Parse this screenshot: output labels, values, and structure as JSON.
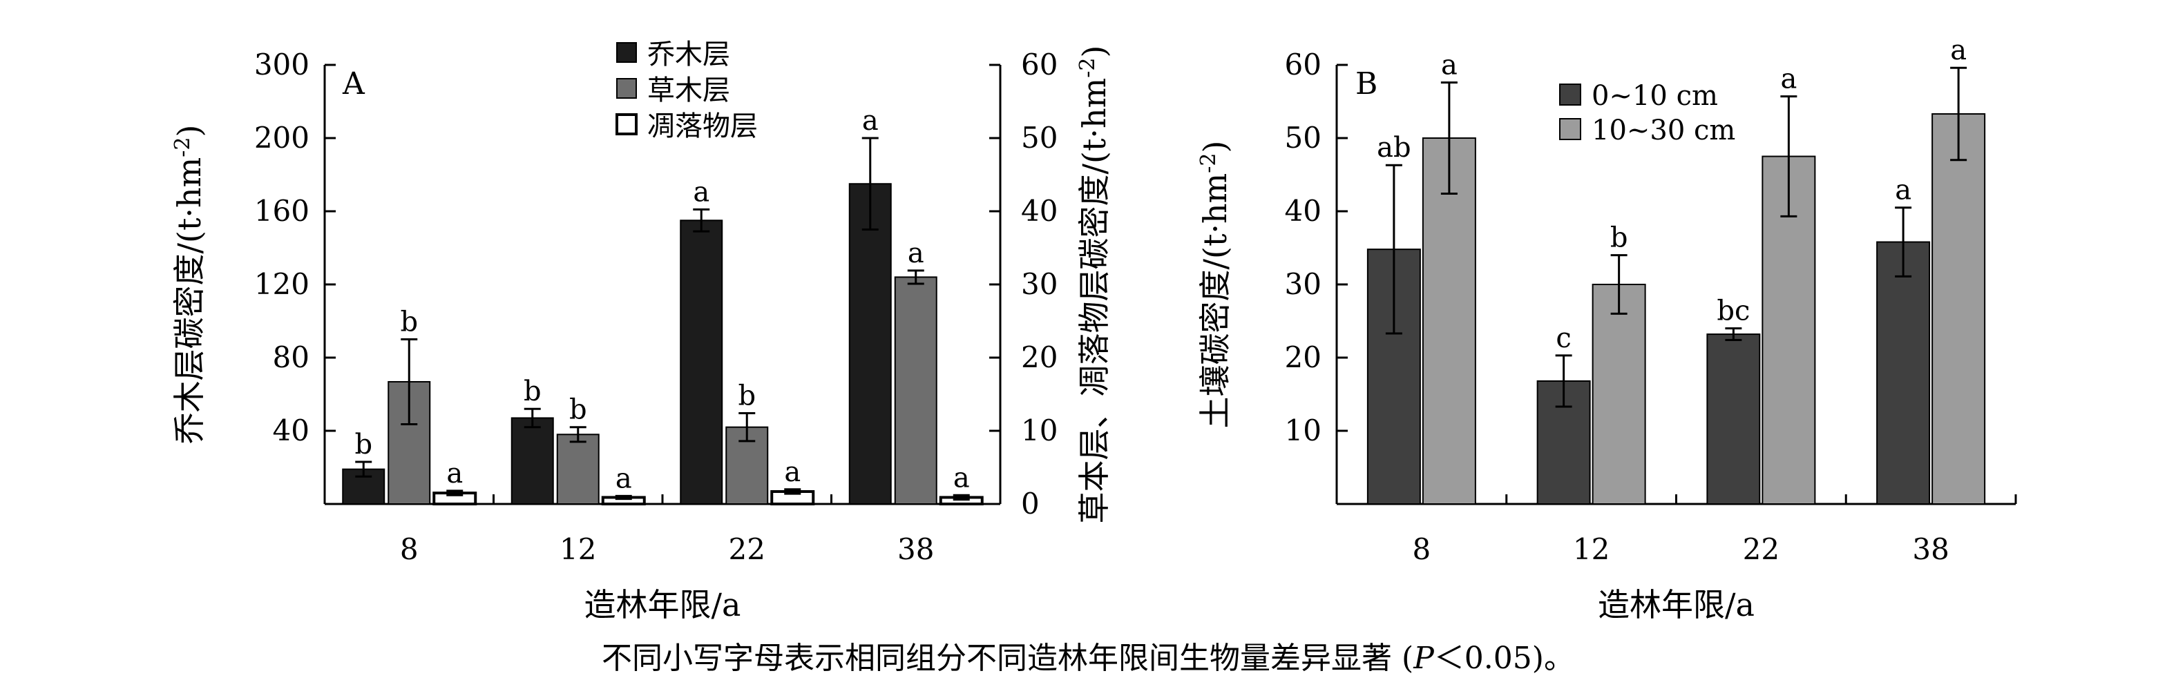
{
  "chart_data": [
    {
      "type": "bar",
      "panel_label": "A",
      "categories": [
        "8",
        "12",
        "22",
        "38"
      ],
      "xlabel": "造林年限/a",
      "ylabel_left": "乔木层碳密度/(t·hm⁻²)",
      "ylabel_right": "草本层、凋落物层碳密度/(t·hm⁻²)",
      "left_axis": {
        "ticks": [
          "40",
          "80",
          "120",
          "160",
          "200",
          "300"
        ]
      },
      "right_axis": {
        "ylim": [
          0,
          60
        ],
        "ticks": [
          "0",
          "10",
          "20",
          "30",
          "40",
          "50",
          "60"
        ]
      },
      "legend_position": "top-center",
      "series": [
        {
          "name": "乔木层",
          "axis": "left",
          "color": "#1c1c1c",
          "fill_style": "solid",
          "values": [
            19,
            47,
            155,
            175
          ],
          "errors": [
            4,
            5,
            6,
            25
          ],
          "letters": [
            "b",
            "b",
            "a",
            "a"
          ]
        },
        {
          "name": "草木层",
          "axis": "right",
          "color": "#6e6e6e",
          "fill_style": "solid",
          "values": [
            16.7,
            9.5,
            10.5,
            31
          ],
          "errors": [
            5.8,
            1.0,
            1.9,
            0.9
          ],
          "letters": [
            "b",
            "b",
            "b",
            "a"
          ]
        },
        {
          "name": "凋落物层",
          "axis": "right",
          "color": "#ffffff",
          "fill_style": "outline",
          "values": [
            1.5,
            0.9,
            1.7,
            0.9
          ],
          "errors": [
            0.3,
            0.2,
            0.3,
            0.3
          ],
          "letters": [
            "a",
            "a",
            "a",
            "a"
          ]
        }
      ]
    },
    {
      "type": "bar",
      "panel_label": "B",
      "categories": [
        "8",
        "12",
        "22",
        "38"
      ],
      "xlabel": "造林年限/a",
      "ylabel": "土壤碳密度/(t·hm⁻²)",
      "ylim": [
        0,
        60
      ],
      "ticks": [
        "10",
        "20",
        "30",
        "40",
        "50",
        "60"
      ],
      "legend_position": "top-center",
      "series": [
        {
          "name": "0~10 cm",
          "color": "#404040",
          "values": [
            34.8,
            16.8,
            23.2,
            35.8
          ],
          "errors": [
            11.5,
            3.5,
            0.8,
            4.7
          ],
          "letters": [
            "ab",
            "c",
            "bc",
            "a"
          ]
        },
        {
          "name": "10~30 cm",
          "color": "#9c9c9c",
          "values": [
            50,
            30,
            47.5,
            53.3
          ],
          "errors": [
            7.6,
            4.0,
            8.2,
            6.3
          ],
          "letters": [
            "a",
            "b",
            "a",
            "a"
          ]
        }
      ]
    }
  ],
  "caption": {
    "prefix": "不同小写字母表示相同组分不同造林年限间生物量差异显著 (",
    "p": "P",
    "suffix": "＜0.05)。"
  }
}
